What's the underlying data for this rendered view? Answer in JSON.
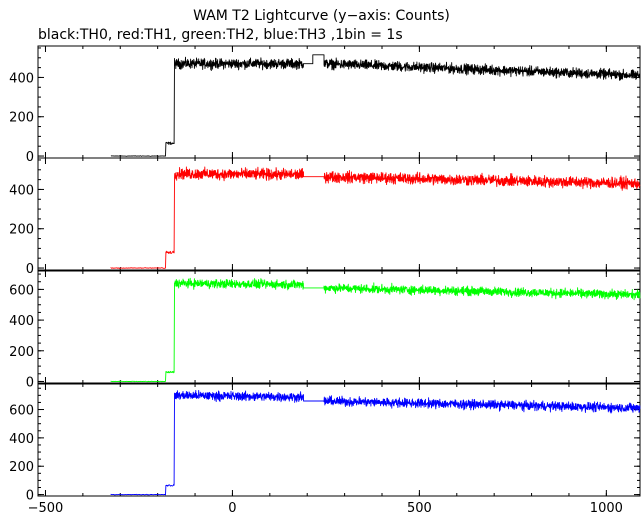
{
  "chart_data": {
    "type": "line",
    "title": "WAM T2 Lightcurve (y−axis: Counts)",
    "subtitle": "black:TH0, red:TH1, green:TH2, blue:TH3 ,1bin = 1s",
    "xlim": [
      -520,
      1090
    ],
    "x_ticks": [
      -500,
      0,
      500,
      1000
    ],
    "panels": [
      {
        "name": "TH0",
        "color": "#000000",
        "ylim": [
          -10,
          560
        ],
        "y_ticks": [
          0,
          200,
          400
        ],
        "pre_level": 0,
        "step_level": 65,
        "peak_level": 470,
        "gap_level": 470,
        "gap_level_2": 515,
        "end_level": 410,
        "noise": 22
      },
      {
        "name": "TH1",
        "color": "#ff0000",
        "ylim": [
          -10,
          560
        ],
        "y_ticks": [
          0,
          200,
          400
        ],
        "pre_level": 0,
        "step_level": 80,
        "peak_level": 480,
        "gap_level": 465,
        "gap_level_2": 465,
        "end_level": 430,
        "noise": 25
      },
      {
        "name": "TH2",
        "color": "#00ff00",
        "ylim": [
          -10,
          720
        ],
        "y_ticks": [
          0,
          200,
          400,
          600
        ],
        "pre_level": 0,
        "step_level": 60,
        "peak_level": 640,
        "gap_level": 610,
        "gap_level_2": 610,
        "end_level": 565,
        "noise": 25
      },
      {
        "name": "TH3",
        "color": "#0000ff",
        "ylim": [
          -10,
          780
        ],
        "y_ticks": [
          0,
          200,
          400,
          600
        ],
        "pre_level": 0,
        "step_level": 65,
        "peak_level": 700,
        "gap_level": 660,
        "gap_level_2": 660,
        "end_level": 610,
        "noise": 28
      }
    ],
    "segments": {
      "start": -325,
      "step_on": -178,
      "rise": -155,
      "gap_start": 190,
      "gap_mid": 215,
      "gap_end": 245,
      "end": 1090
    },
    "grid": false,
    "legend": "none"
  }
}
